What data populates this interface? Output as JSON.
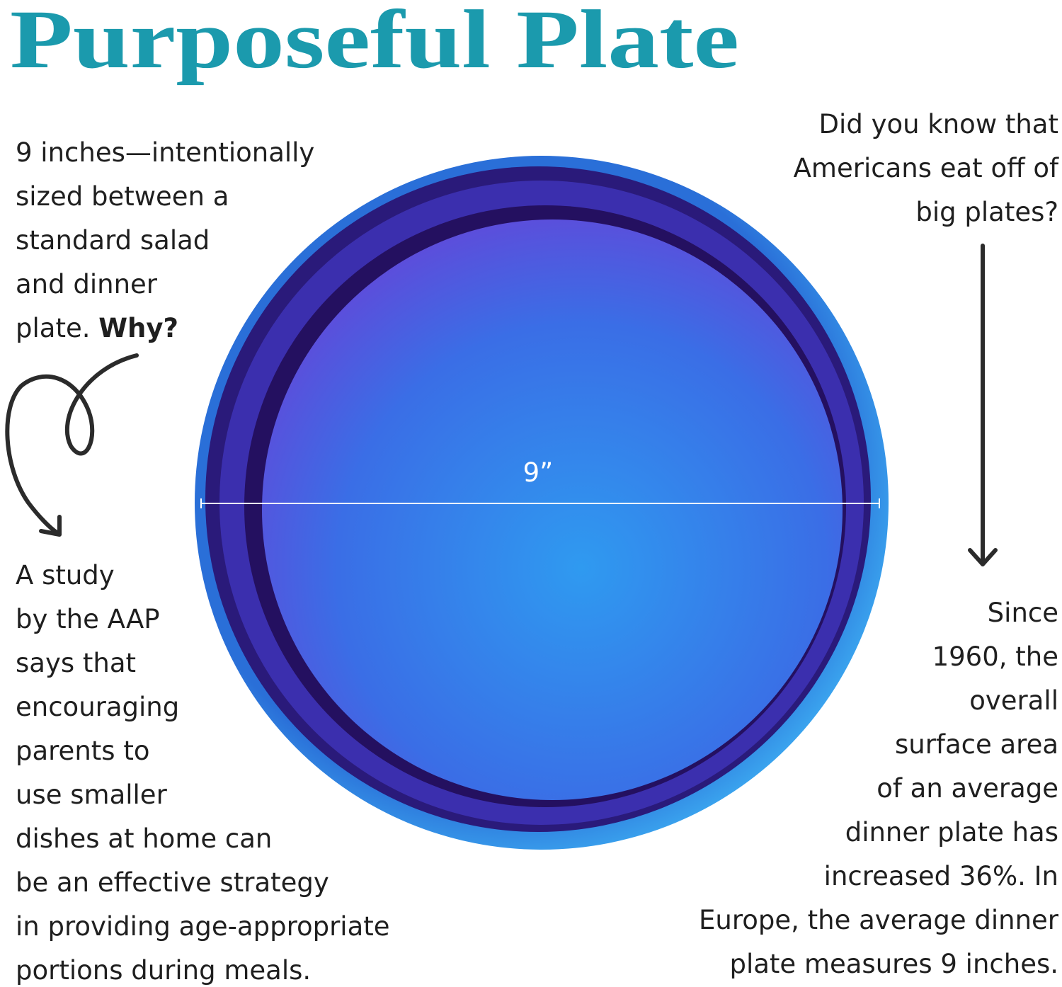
{
  "title": "Purposeful Plate",
  "left_top": {
    "lines": [
      "9 inches—intentionally",
      "sized between a",
      "standard salad",
      "and dinner",
      "plate."
    ],
    "emphasis": "Why?"
  },
  "right_top": {
    "lines": [
      "Did you know that",
      "Americans eat off of",
      "big plates?"
    ]
  },
  "plate_label": "9”",
  "left_bottom": {
    "lines": [
      "A study",
      "by the AAP",
      "says that",
      "encouraging",
      "parents to",
      "use smaller",
      "dishes at home can",
      "be an effective strategy",
      "in providing age-appropriate",
      "portions during meals."
    ]
  },
  "right_bottom": {
    "lines": [
      "Since",
      "1960, the",
      "overall",
      "surface area",
      "of an average",
      "dinner plate has",
      "increased 36%. In",
      "Europe, the average dinner",
      "plate measures 9 inches."
    ]
  }
}
